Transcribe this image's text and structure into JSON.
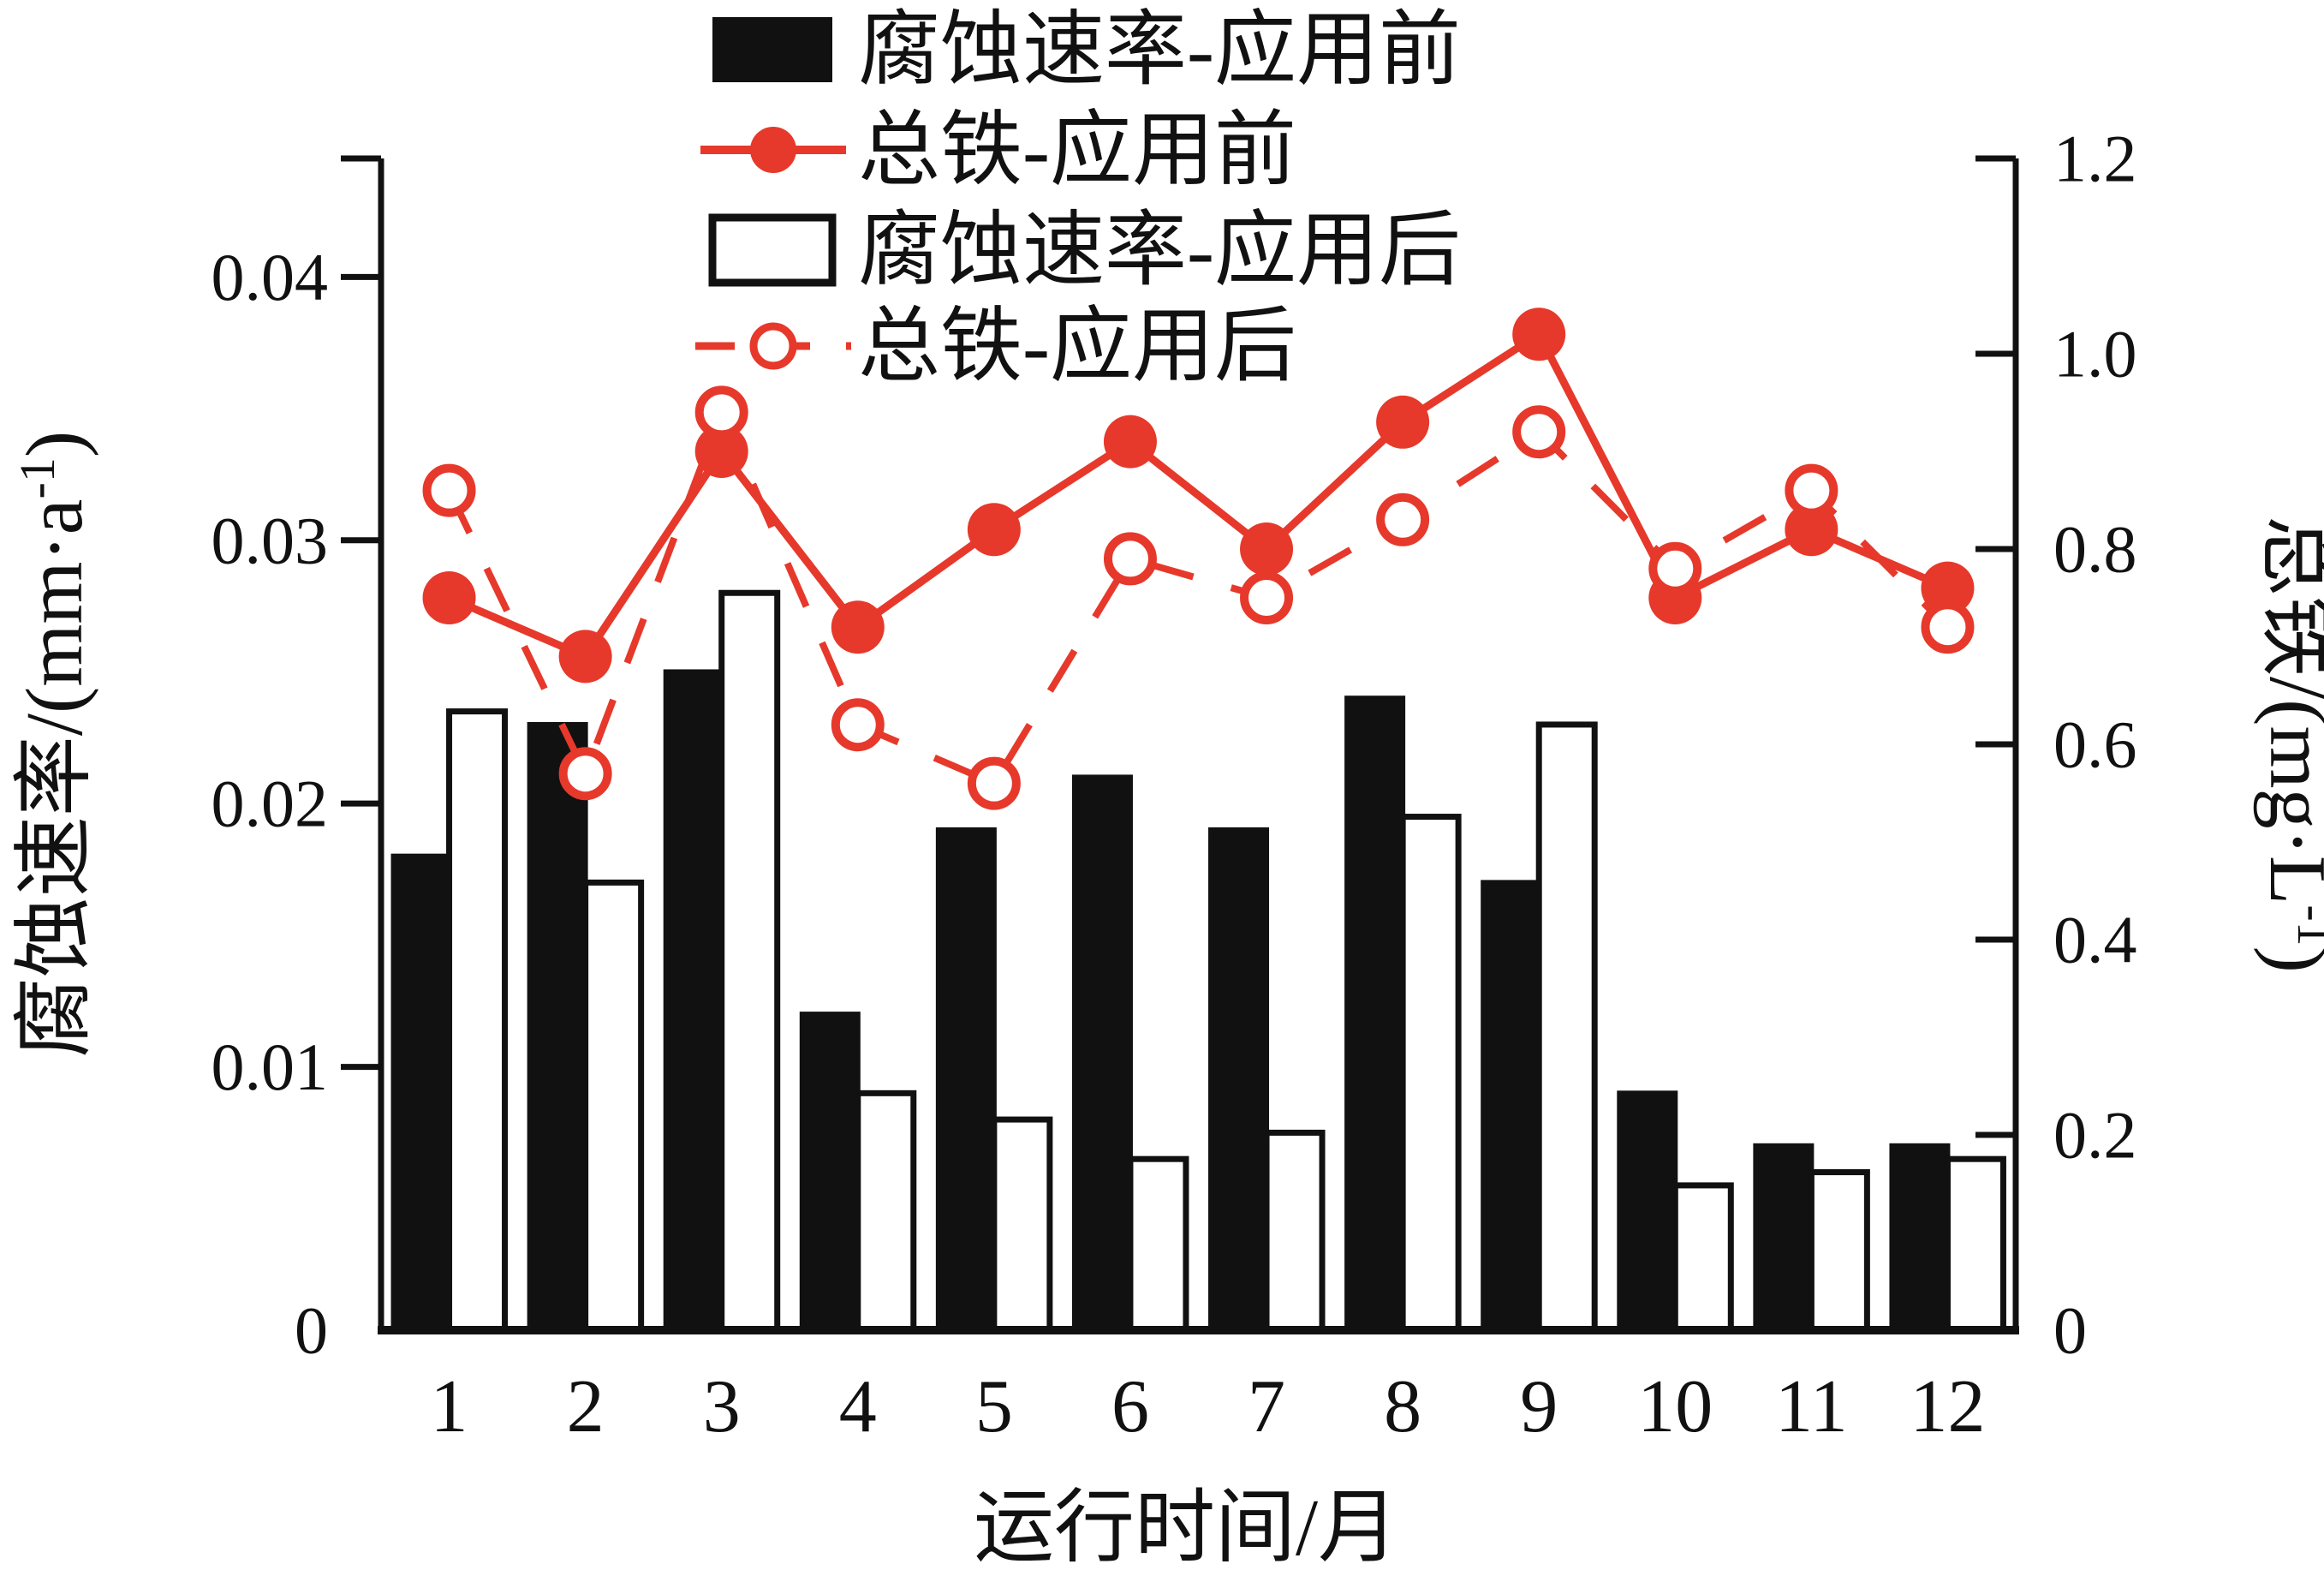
{
  "page": {
    "background": "#ffffff"
  },
  "colors": {
    "red": "#e6392b",
    "black": "#111111",
    "white": "#ffffff"
  },
  "legend": {
    "items": [
      {
        "label": "腐蚀速率-应用前",
        "marker": "filled-bar"
      },
      {
        "label": "总铁-应用前",
        "marker": "solid-line-filled-dot"
      },
      {
        "label": "腐蚀速率-应用后",
        "marker": "open-bar"
      },
      {
        "label": "总铁-应用后",
        "marker": "dashed-line-open-dot"
      }
    ]
  },
  "chart_data": {
    "type": "combo-bar-line",
    "categories": [
      "1",
      "2",
      "3",
      "4",
      "5",
      "6",
      "7",
      "8",
      "9",
      "10",
      "11",
      "12"
    ],
    "xlabel": "运行时间/月",
    "left_axis": {
      "label": "腐蚀速率/(mm·a⁻¹)",
      "label_main": "腐蚀速率/(mm·a",
      "label_sup": "-1",
      "label_end": ")",
      "ticks": [
        0,
        0.01,
        0.02,
        0.03,
        0.04
      ],
      "tick_labels": [
        "0",
        "0.01",
        "0.02",
        "0.03",
        "0.04"
      ],
      "max": 0.0445
    },
    "right_axis": {
      "label": "总铁/(mg·L⁻¹)",
      "label_main": "总铁/(mg·L",
      "label_sup": "-1",
      "label_end": ")",
      "ticks": [
        0,
        0.2,
        0.4,
        0.6,
        0.8,
        1.0,
        1.2
      ],
      "tick_labels": [
        "0",
        "0.2",
        "0.4",
        "0.6",
        "0.8",
        "1.0",
        "1.2"
      ],
      "max": 1.2
    },
    "grid": false,
    "legend_position": "top-center",
    "series": [
      {
        "name": "腐蚀速率-应用前",
        "type": "bar",
        "style": "filled-black",
        "axis": "left",
        "values": [
          0.018,
          0.023,
          0.025,
          0.012,
          0.019,
          0.021,
          0.019,
          0.024,
          0.017,
          0.009,
          0.007,
          0.007
        ]
      },
      {
        "name": "腐蚀速率-应用后",
        "type": "bar",
        "style": "open-white",
        "axis": "left",
        "values": [
          0.0235,
          0.017,
          0.028,
          0.009,
          0.008,
          0.0065,
          0.0075,
          0.0195,
          0.023,
          0.0055,
          0.006,
          0.0065
        ]
      },
      {
        "name": "总铁-应用前",
        "type": "line",
        "style": "solid-filled-dot",
        "axis": "right",
        "values": [
          0.75,
          0.69,
          0.9,
          0.72,
          0.82,
          0.91,
          0.8,
          0.93,
          1.02,
          0.75,
          0.82,
          0.76
        ]
      },
      {
        "name": "总铁-应用后",
        "type": "line",
        "style": "dashed-open-dot",
        "axis": "right",
        "values": [
          0.86,
          0.57,
          0.94,
          0.62,
          0.56,
          0.79,
          0.75,
          0.83,
          0.92,
          0.78,
          0.86,
          0.72
        ]
      }
    ]
  }
}
